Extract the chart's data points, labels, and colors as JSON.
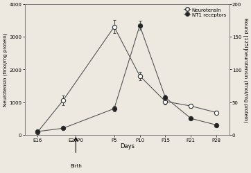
{
  "x_labels": [
    "E16",
    "E20P0",
    "P5",
    "P10",
    "P15",
    "P21",
    "P28"
  ],
  "x_positions": [
    0,
    1,
    3,
    4,
    5,
    6,
    7
  ],
  "x_tick_labels": [
    "E16",
    "E20P0",
    "P5",
    "P10",
    "P15",
    "P21",
    "P28"
  ],
  "neurotensin_values": [
    80,
    1050,
    3300,
    1800,
    1020,
    880,
    680
  ],
  "neurotensin_errors": [
    30,
    150,
    200,
    130,
    90,
    60,
    50
  ],
  "nt1_right_values": [
    5,
    10,
    40,
    167,
    57,
    25,
    15
  ],
  "nt1_right_errors": [
    1,
    2,
    4,
    7,
    4,
    2,
    1.5
  ],
  "ylim_left": [
    0,
    4000
  ],
  "ylim_right": [
    0,
    200
  ],
  "yticks_left": [
    0,
    1000,
    2000,
    3000,
    4000
  ],
  "yticks_right": [
    0,
    50,
    100,
    150,
    200
  ],
  "ylabel_left": "Neurotensin (fmol/mg protein)",
  "ylabel_right": "Bound [125I]neurotensin (fmol/mg protein)",
  "xlabel": "Days",
  "legend_neurotensin": "Neurotensin",
  "legend_nt1": "NT1 receptors",
  "birth_arrow_xi": 1,
  "birth_label": "Birth",
  "background_color": "#ede9e1",
  "line_color": "#555555",
  "open_marker_color": "white",
  "closed_marker_color": "#222222",
  "marker_edge_color": "#333333",
  "xlim": [
    -0.5,
    7.5
  ]
}
